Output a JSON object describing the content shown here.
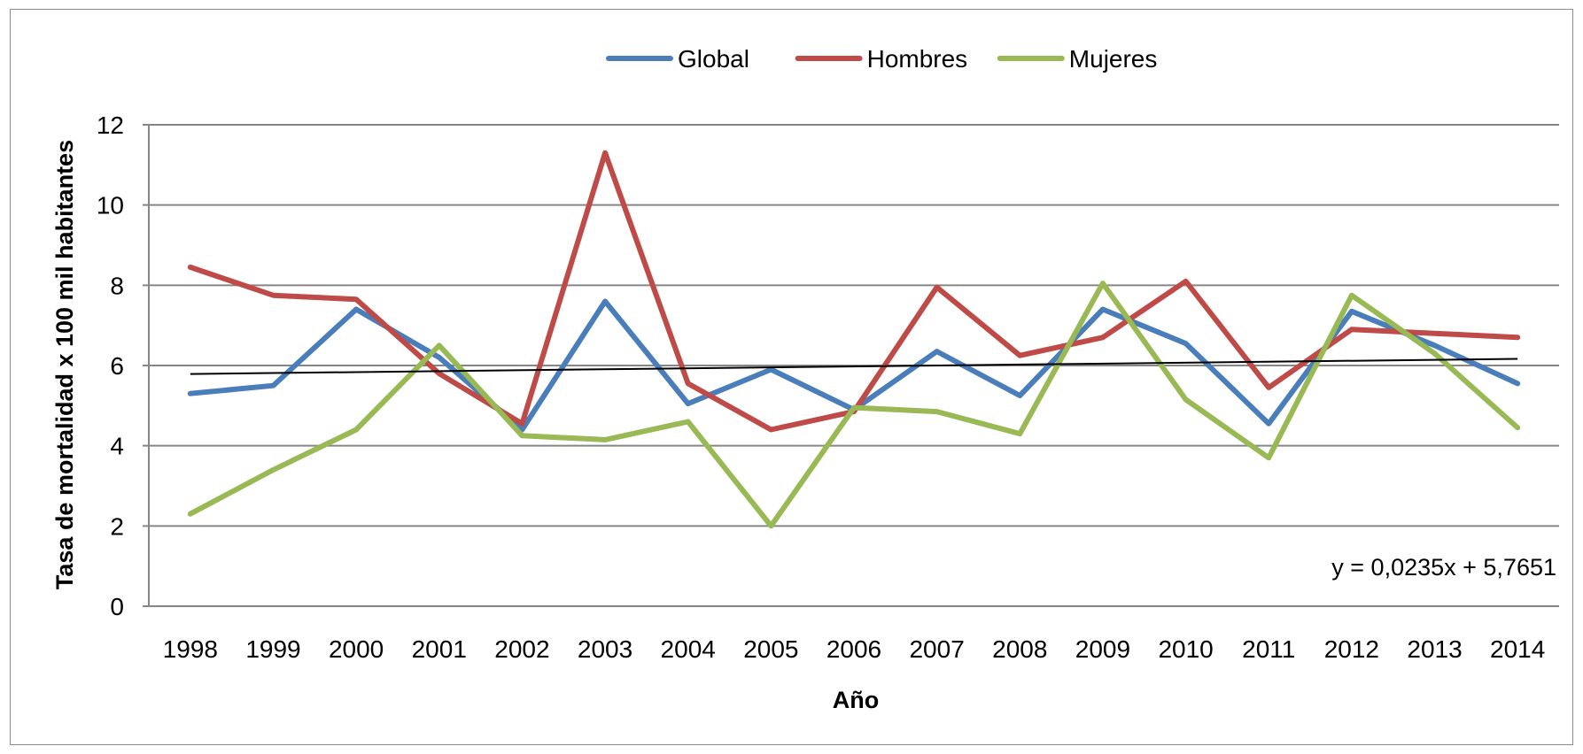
{
  "chart_data": {
    "type": "line",
    "title": "",
    "xlabel": "Año",
    "ylabel": "Tasa de mortalidad x 100 mil habitantes",
    "ylim": [
      0,
      12
    ],
    "yticks": [
      0,
      2,
      4,
      6,
      8,
      10,
      12
    ],
    "grid": true,
    "legend_position": "top",
    "categories": [
      "1998",
      "1999",
      "2000",
      "2001",
      "2002",
      "2003",
      "2004",
      "2005",
      "2006",
      "2007",
      "2008",
      "2009",
      "2010",
      "2011",
      "2012",
      "2013",
      "2014"
    ],
    "series": [
      {
        "name": "Global",
        "color": "#4a7ebb",
        "values": [
          5.3,
          5.5,
          7.4,
          6.2,
          4.4,
          7.6,
          5.05,
          5.9,
          4.9,
          6.35,
          5.25,
          7.4,
          6.55,
          4.55,
          7.35,
          6.5,
          5.55
        ]
      },
      {
        "name": "Hombres",
        "color": "#be4b48",
        "values": [
          8.45,
          7.75,
          7.65,
          5.8,
          4.55,
          11.3,
          5.55,
          4.4,
          4.85,
          7.95,
          6.25,
          6.7,
          8.1,
          5.45,
          6.9,
          6.8,
          6.7
        ]
      },
      {
        "name": "Mujeres",
        "color": "#98b954",
        "values": [
          2.3,
          3.4,
          4.4,
          6.5,
          4.25,
          4.15,
          4.6,
          2.0,
          4.95,
          4.85,
          4.3,
          8.05,
          5.15,
          3.7,
          7.75,
          6.3,
          4.45
        ]
      }
    ],
    "trendline": {
      "slope": 0.0235,
      "intercept": 5.7651,
      "color": "#000000"
    },
    "equation_label": "y = 0,0235x + 5,7651"
  }
}
